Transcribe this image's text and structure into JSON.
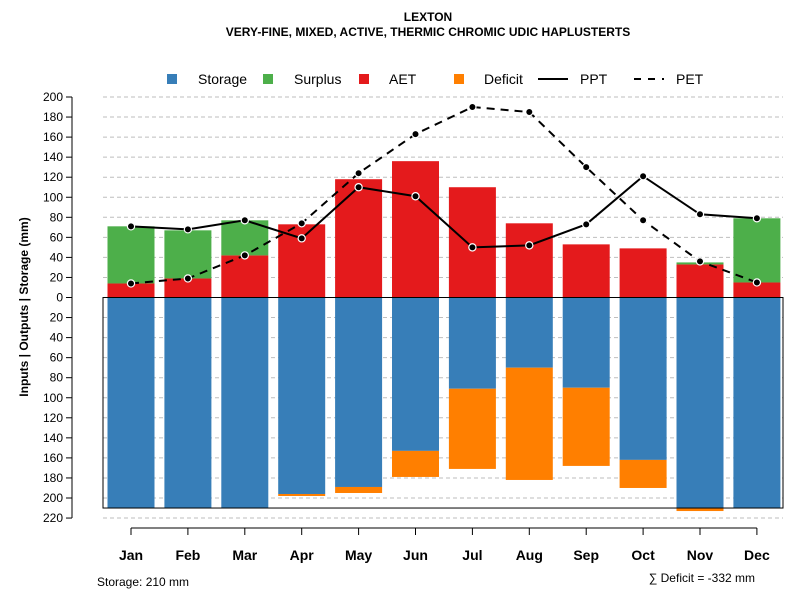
{
  "chart_data": {
    "type": "bar",
    "title": "LEXTON",
    "subtitle": "VERY-FINE, MIXED, ACTIVE, THERMIC CHROMIC UDIC HAPLUSTERTS",
    "ylabel": "Inputs | Outputs | Storage    (mm)",
    "ylim": [
      -220,
      200
    ],
    "yticks": [
      200,
      180,
      160,
      140,
      120,
      100,
      80,
      60,
      40,
      20,
      0,
      -20,
      -40,
      -60,
      -80,
      -100,
      -120,
      -140,
      -160,
      -180,
      -200,
      -220
    ],
    "ytick_labels": [
      "200",
      "180",
      "160",
      "140",
      "120",
      "100",
      "80",
      "60",
      "40",
      "20",
      "0",
      "20",
      "40",
      "60",
      "80",
      "100",
      "120",
      "140",
      "160",
      "180",
      "200",
      "220"
    ],
    "categories": [
      "Jan",
      "Feb",
      "Mar",
      "Apr",
      "May",
      "Jun",
      "Jul",
      "Aug",
      "Sep",
      "Oct",
      "Nov",
      "Dec"
    ],
    "series": [
      {
        "name": "AET",
        "values": [
          14,
          19,
          42,
          73,
          118,
          136,
          110,
          74,
          53,
          49,
          33,
          15
        ]
      },
      {
        "name": "Surplus",
        "values": [
          57,
          48,
          35,
          0,
          0,
          0,
          0,
          0,
          0,
          0,
          2,
          64
        ]
      },
      {
        "name": "Storage",
        "values": [
          210,
          210,
          210,
          196,
          189,
          153,
          91,
          70,
          90,
          162,
          210,
          210
        ]
      },
      {
        "name": "Deficit",
        "values": [
          0,
          0,
          0,
          2,
          6,
          26,
          80,
          112,
          78,
          28,
          3,
          0
        ]
      },
      {
        "name": "PPT",
        "values": [
          71,
          68,
          77,
          59,
          110,
          101,
          50,
          52,
          73,
          121,
          83,
          79
        ]
      },
      {
        "name": "PET",
        "values": [
          14,
          19,
          42,
          74,
          124,
          163,
          190,
          185,
          130,
          77,
          36,
          15
        ]
      }
    ],
    "legend": [
      {
        "name": "Storage",
        "kind": "square",
        "color": "#377eb8"
      },
      {
        "name": "Surplus",
        "kind": "square",
        "color": "#4daf4a"
      },
      {
        "name": "AET",
        "kind": "square",
        "color": "#e41a1c"
      },
      {
        "name": "Deficit",
        "kind": "square",
        "color": "#ff7f00"
      },
      {
        "name": "PPT",
        "kind": "solid-line",
        "color": "#000000"
      },
      {
        "name": "PET",
        "kind": "dashed-line",
        "color": "#000000"
      }
    ],
    "legend_position": "top",
    "grid": true,
    "colors": {
      "storage": "#377eb8",
      "surplus": "#4daf4a",
      "aet": "#e41a1c",
      "deficit": "#ff7f00",
      "grid": "#bebebe"
    },
    "footer_left": "Storage: 210 mm",
    "footer_right": "∑ Deficit = -332 mm"
  }
}
